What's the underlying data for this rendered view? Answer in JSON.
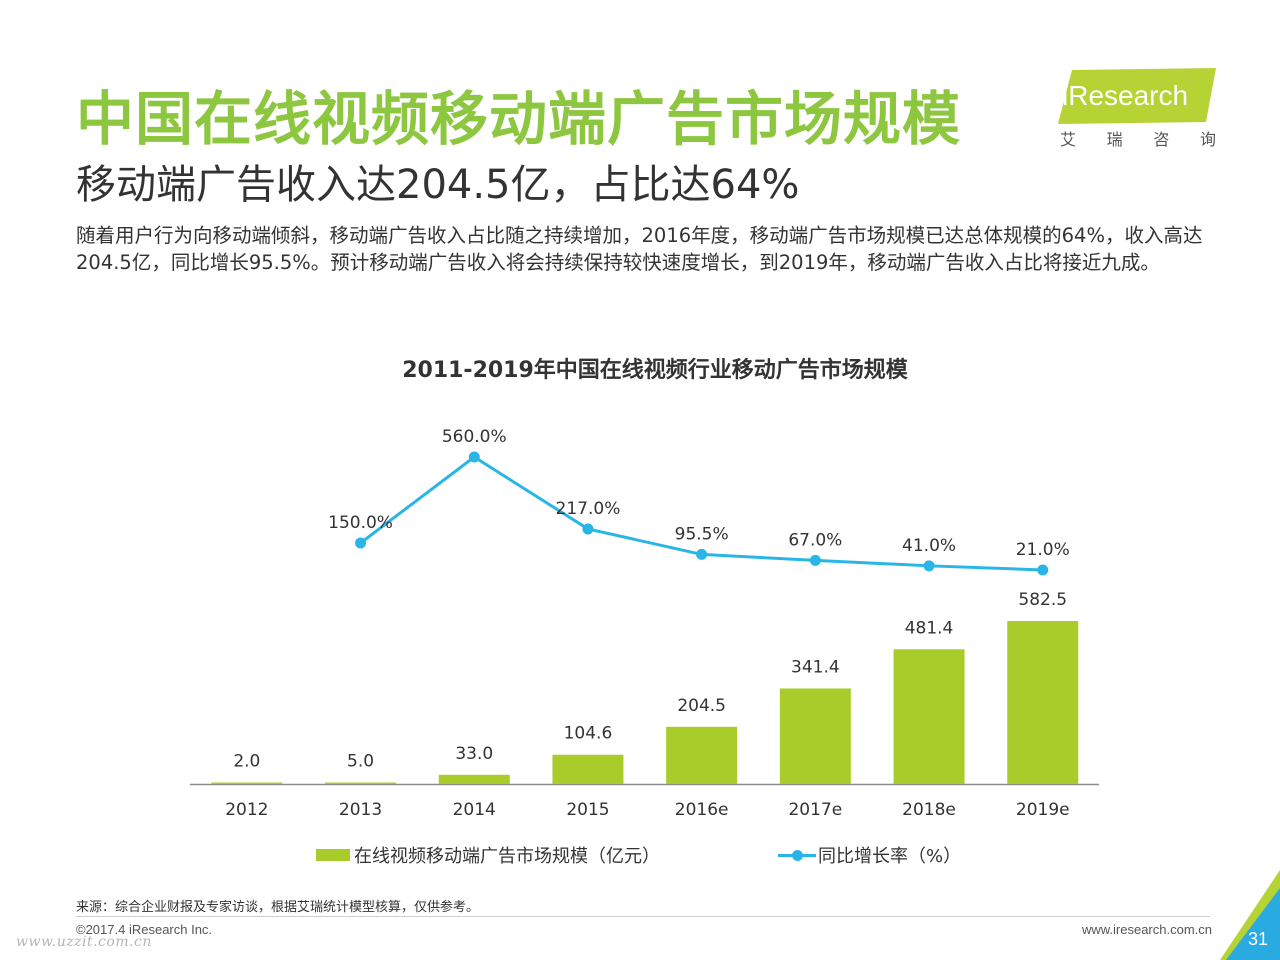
{
  "header": {
    "title": "中国在线视频移动端广告市场规模",
    "subtitle": "移动端广告收入达204.5亿，占比达64%",
    "description": "随着用户行为向移动端倾斜，移动端广告收入占比随之持续增加，2016年度，移动端广告市场规模已达总体规模的64%，收入高达204.5亿，同比增长95.5%。预计移动端广告收入将会持续保持较快速度增长，到2019年，移动端广告收入占比将接近九成。"
  },
  "logo": {
    "name": "iResearch",
    "sub_chars": [
      "艾",
      "瑞",
      "咨",
      "询"
    ],
    "color": "#b5d334"
  },
  "chart_data": {
    "type": "bar",
    "title": "2011-2019年中国在线视频行业移动广告市场规模",
    "categories": [
      "2012",
      "2013",
      "2014",
      "2015",
      "2016e",
      "2017e",
      "2018e",
      "2019e"
    ],
    "series": [
      {
        "name": "在线视频移动端广告市场规模（亿元）",
        "type": "bar",
        "values": [
          2.0,
          5.0,
          33.0,
          104.6,
          204.5,
          341.4,
          481.4,
          582.5
        ],
        "labels": [
          "2.0",
          "5.0",
          "33.0",
          "104.6",
          "204.5",
          "341.4",
          "481.4",
          "582.5"
        ],
        "color": "#a9cc2a"
      },
      {
        "name": "同比增长率（%）",
        "type": "line",
        "values": [
          null,
          150.0,
          560.0,
          217.0,
          95.5,
          67.0,
          41.0,
          21.0
        ],
        "labels": [
          "",
          "150.0%",
          "560.0%",
          "217.0%",
          "95.5%",
          "67.0%",
          "41.0%",
          "21.0%"
        ],
        "color": "#29b6e6"
      }
    ],
    "legend_position": "bottom",
    "grid": false
  },
  "footer": {
    "source": "来源：综合企业财报及专家访谈，根据艾瑞统计模型核算，仅供参考。",
    "copyright": "©2017.4 iResearch Inc.",
    "website": "www.iresearch.com.cn",
    "watermark": "www.uzzit.com.cn",
    "page_number": "31"
  },
  "colors": {
    "title_green": "#8dc63f",
    "bar_green": "#a9cc2a",
    "line_blue": "#29b6e6",
    "corner_blue": "#29abe2"
  }
}
